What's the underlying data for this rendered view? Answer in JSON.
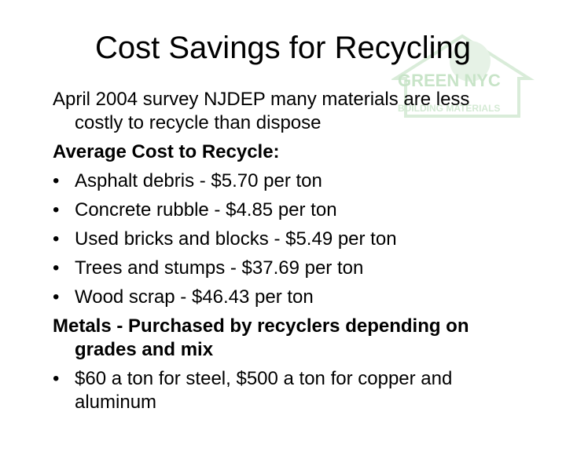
{
  "slide": {
    "title": "Cost Savings for Recycling",
    "logo": {
      "text": "GREEN NYC",
      "subtext": "BUILDING MATERIALS"
    },
    "intro": "April 2004 survey NJDEP many materials are less costly to recycle than dispose",
    "heading": "Average Cost to Recycle:",
    "bullets": [
      "Asphalt debris - $5.70 per ton",
      "Concrete rubble - $4.85 per ton",
      "Used bricks and blocks - $5.49 per ton",
      "Trees and stumps - $37.69 per ton",
      "Wood scrap - $46.43 per ton"
    ],
    "metals_heading": "Metals - Purchased by recyclers depending on grades and mix",
    "metals_bullets": [
      "$60 a ton for steel, $500 a ton for copper and aluminum"
    ]
  }
}
